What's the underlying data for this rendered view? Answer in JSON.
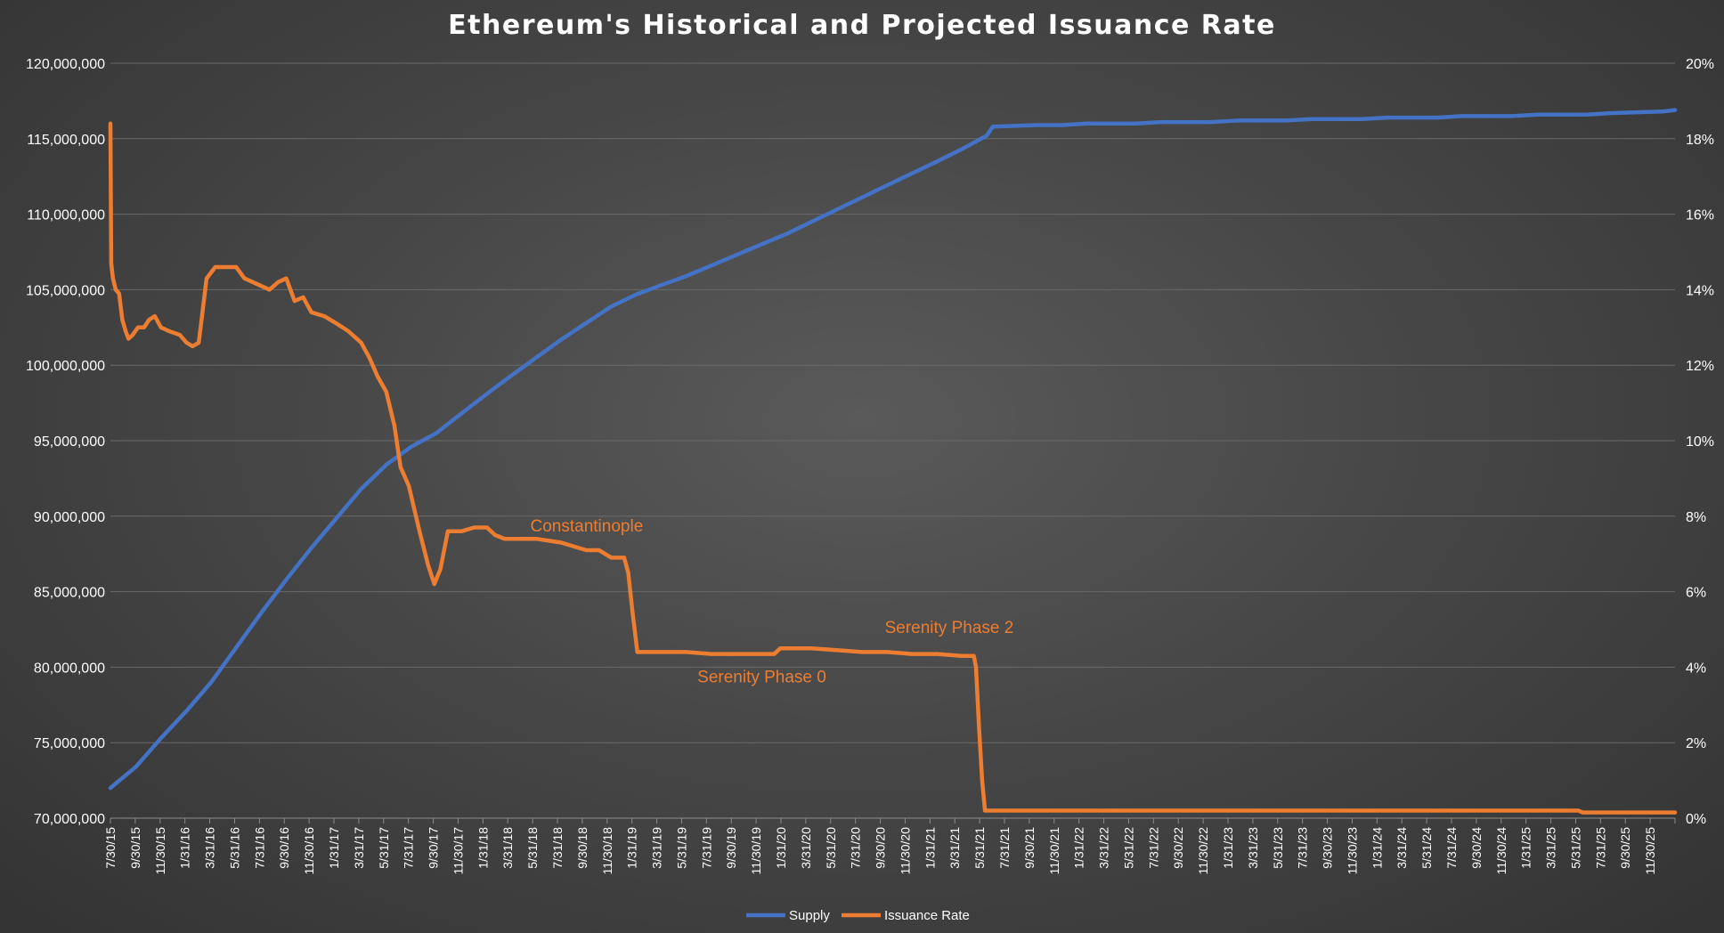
{
  "chart_data": {
    "type": "line",
    "title": "Ethereum's Historical and Projected Issuance Rate",
    "x_type": "date",
    "x_range": [
      "2015-07-30",
      "2025-12-31"
    ],
    "x_tick_labels": [
      "7/30/15",
      "9/30/15",
      "11/30/15",
      "1/31/16",
      "3/31/16",
      "5/31/16",
      "7/31/16",
      "9/30/16",
      "11/30/16",
      "1/31/17",
      "3/31/17",
      "5/31/17",
      "7/31/17",
      "9/30/17",
      "11/30/17",
      "1/31/18",
      "3/31/18",
      "5/31/18",
      "7/31/18",
      "9/30/18",
      "11/30/18",
      "1/31/19",
      "3/31/19",
      "5/31/19",
      "7/31/19",
      "9/30/19",
      "11/30/19",
      "1/31/20",
      "3/31/20",
      "5/31/20",
      "7/31/20",
      "9/30/20",
      "11/30/20",
      "1/31/21",
      "3/31/21",
      "5/31/21",
      "7/31/21",
      "9/30/21",
      "11/30/21",
      "1/31/22",
      "3/31/22",
      "5/31/22",
      "7/31/22",
      "9/30/22",
      "11/30/22",
      "1/31/23",
      "3/31/23",
      "5/31/23",
      "7/31/23",
      "9/30/23",
      "11/30/23",
      "1/31/24",
      "3/31/24",
      "5/31/24",
      "7/31/24",
      "9/30/24",
      "11/30/24",
      "1/31/25",
      "3/31/25",
      "5/31/25",
      "7/31/25",
      "9/30/25",
      "11/30/25"
    ],
    "y_left": {
      "min": 70000000,
      "max": 120000000,
      "step": 5000000,
      "tick_labels": [
        "70,000,000",
        "75,000,000",
        "80,000,000",
        "85,000,000",
        "90,000,000",
        "95,000,000",
        "100,000,000",
        "105,000,000",
        "110,000,000",
        "115,000,000",
        "120,000,000"
      ]
    },
    "y_right": {
      "min": 0,
      "max": 20,
      "step": 2,
      "tick_labels": [
        "0%",
        "2%",
        "4%",
        "6%",
        "8%",
        "10%",
        "12%",
        "14%",
        "16%",
        "18%",
        "20%"
      ]
    },
    "grid": true,
    "legend_position": "bottom",
    "series": [
      {
        "name": "Supply",
        "axis": "left",
        "color": "#4472C4",
        "points": [
          [
            "2015-07-30",
            72000000
          ],
          [
            "2015-09-30",
            73400000
          ],
          [
            "2015-11-30",
            75300000
          ],
          [
            "2016-01-31",
            77100000
          ],
          [
            "2016-03-31",
            79000000
          ],
          [
            "2016-05-31",
            81300000
          ],
          [
            "2016-07-31",
            83600000
          ],
          [
            "2016-09-30",
            85800000
          ],
          [
            "2016-11-30",
            87900000
          ],
          [
            "2017-01-31",
            89900000
          ],
          [
            "2017-03-31",
            91800000
          ],
          [
            "2017-05-31",
            93400000
          ],
          [
            "2017-07-31",
            94600000
          ],
          [
            "2017-09-30",
            95500000
          ],
          [
            "2017-11-30",
            96800000
          ],
          [
            "2018-01-31",
            98100000
          ],
          [
            "2018-03-31",
            99300000
          ],
          [
            "2018-05-31",
            100500000
          ],
          [
            "2018-07-31",
            101700000
          ],
          [
            "2018-09-30",
            102800000
          ],
          [
            "2018-11-30",
            103900000
          ],
          [
            "2019-01-31",
            104700000
          ],
          [
            "2019-03-31",
            105300000
          ],
          [
            "2019-05-31",
            105900000
          ],
          [
            "2019-07-31",
            106600000
          ],
          [
            "2019-09-30",
            107300000
          ],
          [
            "2019-11-30",
            108000000
          ],
          [
            "2020-01-31",
            108700000
          ],
          [
            "2020-03-31",
            109500000
          ],
          [
            "2020-05-31",
            110300000
          ],
          [
            "2020-07-31",
            111100000
          ],
          [
            "2020-09-30",
            111900000
          ],
          [
            "2020-11-30",
            112700000
          ],
          [
            "2021-01-31",
            113500000
          ],
          [
            "2021-03-31",
            114300000
          ],
          [
            "2021-05-31",
            115200000
          ],
          [
            "2021-06-15",
            115800000
          ],
          [
            "2021-09-30",
            115900000
          ],
          [
            "2021-11-30",
            115900000
          ],
          [
            "2022-01-31",
            116000000
          ],
          [
            "2022-05-31",
            116000000
          ],
          [
            "2022-07-31",
            116100000
          ],
          [
            "2022-11-30",
            116100000
          ],
          [
            "2023-01-31",
            116200000
          ],
          [
            "2023-05-31",
            116200000
          ],
          [
            "2023-07-31",
            116300000
          ],
          [
            "2023-11-30",
            116300000
          ],
          [
            "2024-01-31",
            116400000
          ],
          [
            "2024-05-31",
            116400000
          ],
          [
            "2024-07-31",
            116500000
          ],
          [
            "2024-11-30",
            116500000
          ],
          [
            "2025-01-31",
            116600000
          ],
          [
            "2025-05-31",
            116600000
          ],
          [
            "2025-07-31",
            116700000
          ],
          [
            "2025-11-30",
            116800000
          ],
          [
            "2025-12-31",
            116900000
          ]
        ]
      },
      {
        "name": "Issuance Rate",
        "axis": "right",
        "color": "#ED7D31",
        "points": [
          [
            "2015-07-30",
            18.4
          ],
          [
            "2015-08-01",
            14.7
          ],
          [
            "2015-08-05",
            14.3
          ],
          [
            "2015-08-12",
            14.0
          ],
          [
            "2015-08-20",
            13.9
          ],
          [
            "2015-08-28",
            13.2
          ],
          [
            "2015-09-05",
            12.9
          ],
          [
            "2015-09-12",
            12.7
          ],
          [
            "2015-09-22",
            12.8
          ],
          [
            "2015-10-05",
            13.0
          ],
          [
            "2015-10-20",
            13.0
          ],
          [
            "2015-11-01",
            13.2
          ],
          [
            "2015-11-15",
            13.3
          ],
          [
            "2015-11-30",
            13.0
          ],
          [
            "2015-12-20",
            12.9
          ],
          [
            "2016-01-15",
            12.8
          ],
          [
            "2016-01-31",
            12.6
          ],
          [
            "2016-02-15",
            12.5
          ],
          [
            "2016-03-01",
            12.6
          ],
          [
            "2016-03-20",
            14.3
          ],
          [
            "2016-04-10",
            14.6
          ],
          [
            "2016-05-01",
            14.6
          ],
          [
            "2016-05-31",
            14.6
          ],
          [
            "2016-06-20",
            14.3
          ],
          [
            "2016-07-31",
            14.1
          ],
          [
            "2016-08-20",
            14.0
          ],
          [
            "2016-09-10",
            14.2
          ],
          [
            "2016-09-30",
            14.3
          ],
          [
            "2016-10-20",
            13.7
          ],
          [
            "2016-11-10",
            13.8
          ],
          [
            "2016-11-30",
            13.4
          ],
          [
            "2016-12-31",
            13.3
          ],
          [
            "2017-01-31",
            13.1
          ],
          [
            "2017-02-28",
            12.9
          ],
          [
            "2017-03-31",
            12.6
          ],
          [
            "2017-04-20",
            12.2
          ],
          [
            "2017-05-10",
            11.7
          ],
          [
            "2017-05-31",
            11.3
          ],
          [
            "2017-06-20",
            10.4
          ],
          [
            "2017-07-05",
            9.3
          ],
          [
            "2017-07-25",
            8.8
          ],
          [
            "2017-08-20",
            7.6
          ],
          [
            "2017-09-10",
            6.7
          ],
          [
            "2017-09-25",
            6.2
          ],
          [
            "2017-10-10",
            6.6
          ],
          [
            "2017-10-28",
            7.6
          ],
          [
            "2017-11-30",
            7.6
          ],
          [
            "2017-12-31",
            7.7
          ],
          [
            "2018-01-31",
            7.7
          ],
          [
            "2018-02-20",
            7.5
          ],
          [
            "2018-03-15",
            7.4
          ],
          [
            "2018-03-31",
            7.4
          ],
          [
            "2018-05-31",
            7.4
          ],
          [
            "2018-07-31",
            7.3
          ],
          [
            "2018-09-30",
            7.1
          ],
          [
            "2018-10-31",
            7.1
          ],
          [
            "2018-11-30",
            6.9
          ],
          [
            "2018-12-31",
            6.9
          ],
          [
            "2019-01-10",
            6.5
          ],
          [
            "2019-01-20",
            5.5
          ],
          [
            "2019-02-01",
            4.4
          ],
          [
            "2019-03-31",
            4.4
          ],
          [
            "2019-05-31",
            4.4
          ],
          [
            "2019-07-31",
            4.35
          ],
          [
            "2019-09-30",
            4.35
          ],
          [
            "2019-11-30",
            4.35
          ],
          [
            "2019-12-31",
            4.35
          ],
          [
            "2020-01-15",
            4.5
          ],
          [
            "2020-01-31",
            4.5
          ],
          [
            "2020-03-31",
            4.5
          ],
          [
            "2020-05-31",
            4.45
          ],
          [
            "2020-07-31",
            4.4
          ],
          [
            "2020-09-30",
            4.4
          ],
          [
            "2020-11-30",
            4.35
          ],
          [
            "2021-01-31",
            4.35
          ],
          [
            "2021-03-31",
            4.3
          ],
          [
            "2021-04-30",
            4.3
          ],
          [
            "2021-05-05",
            4.0
          ],
          [
            "2021-05-12",
            2.5
          ],
          [
            "2021-05-20",
            1.0
          ],
          [
            "2021-05-27",
            0.2
          ],
          [
            "2021-09-30",
            0.2
          ],
          [
            "2022-09-30",
            0.2
          ],
          [
            "2023-09-30",
            0.2
          ],
          [
            "2024-09-30",
            0.2
          ],
          [
            "2025-05-10",
            0.2
          ],
          [
            "2025-05-20",
            0.15
          ],
          [
            "2025-12-31",
            0.15
          ]
        ]
      }
    ],
    "annotations": [
      {
        "text": "Constantinople",
        "x": "2018-10-01",
        "axis": "right",
        "y": 7.6
      },
      {
        "text": "Serenity Phase 0",
        "x": "2019-12-01",
        "axis": "right",
        "y": 3.6
      },
      {
        "text": "Serenity Phase 2",
        "x": "2021-03-01",
        "axis": "right",
        "y": 4.9
      }
    ]
  }
}
